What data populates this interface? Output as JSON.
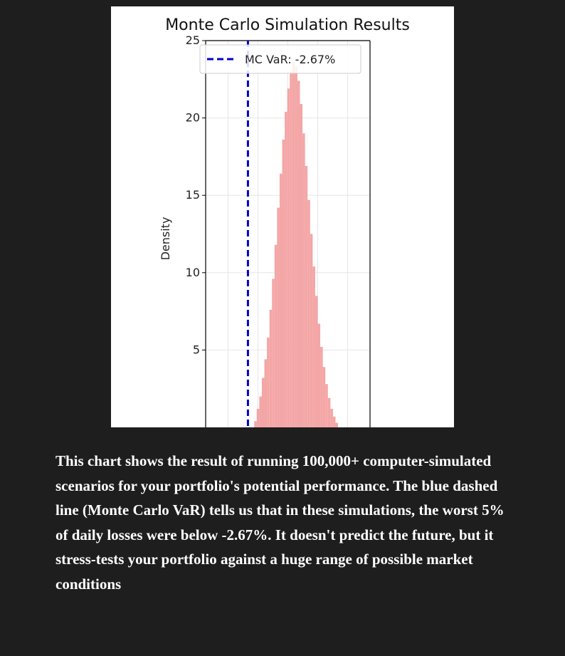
{
  "chart_data": {
    "type": "histogram",
    "title": "Monte Carlo Simulation Results",
    "ylabel": "Density",
    "xlabel": "",
    "ylim": [
      0,
      25
    ],
    "y_ticks": [
      5,
      10,
      15,
      20,
      25
    ],
    "x_range": [
      -0.055,
      0.055
    ],
    "x_gridlines": [
      -0.04,
      -0.02,
      0.0,
      0.02,
      0.04
    ],
    "grid": true,
    "bins": {
      "start": -0.0225,
      "width": 0.0017,
      "densities": [
        0.4,
        1.2,
        2.0,
        3.2,
        4.4,
        5.8,
        7.6,
        9.6,
        11.8,
        14.2,
        16.4,
        18.6,
        20.4,
        21.9,
        23.0,
        23.6,
        23.3,
        22.4,
        20.9,
        19.0,
        16.9,
        14.7,
        12.5,
        10.4,
        8.5,
        6.7,
        5.2,
        3.9,
        2.8,
        1.9,
        1.2,
        0.7,
        0.3
      ]
    },
    "series_color": "#f4a6a6",
    "var_line": {
      "x": -0.0267,
      "label": "MC VaR: -2.67%",
      "color": "#0000cc",
      "style": "dashed"
    },
    "legend": {
      "placement": "top-left"
    }
  },
  "caption": {
    "text": "This chart shows the result of running 100,000+ computer-simulated scenarios for your portfolio's potential performance. The blue dashed line (Monte Carlo VaR) tells us that in these simulations, the worst 5% of daily losses were below -2.67%. It doesn't predict the future, but it stress-tests your portfolio against a huge range of possible market conditions"
  }
}
